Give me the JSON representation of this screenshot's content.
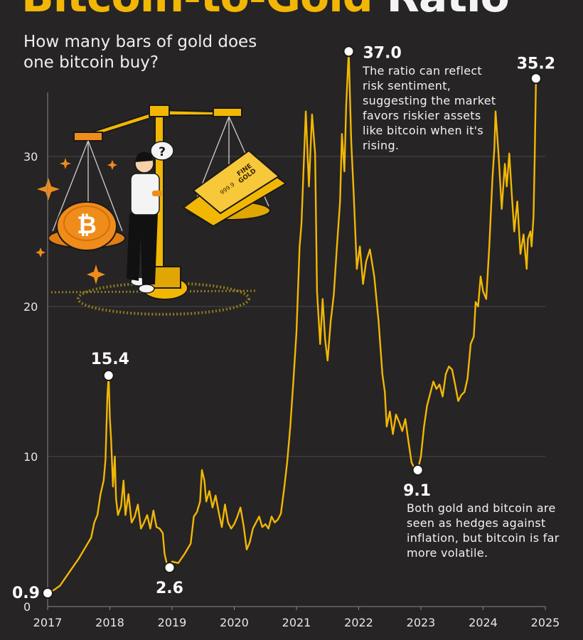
{
  "title": {
    "part1": "Bitcoin-to-Gold",
    "part2": " Ratio"
  },
  "subtitle": "How many bars of gold does one bitcoin buy?",
  "colors": {
    "line": "#f2b705",
    "background": "#262424",
    "grid": "#4a4747",
    "accent": "#f08c1a"
  },
  "annotations": {
    "peak_note": "The ratio can reflect risk sentiment, suggesting the market favors riskier assets like bitcoin when it's rising.",
    "low_note": "Both gold and bitcoin are seen as hedges against inflation, but bitcoin is far more volatile."
  },
  "illustration": {
    "bar_stamp_line1": "FINE",
    "bar_stamp_line2": "GOLD",
    "bar_purity": "999.9",
    "thinking_bubble": "?"
  },
  "chart_data": {
    "type": "line",
    "title": "Bitcoin-to-Gold Ratio",
    "subtitle": "How many bars of gold does one bitcoin buy?",
    "xlabel": "",
    "ylabel": "",
    "xlim": [
      2017,
      2025
    ],
    "ylim": [
      0,
      40
    ],
    "x_ticks": [
      2017,
      2018,
      2019,
      2020,
      2021,
      2022,
      2023,
      2024,
      2025
    ],
    "y_ticks": [
      0,
      10,
      20,
      30
    ],
    "grid": "horizontal",
    "series": [
      {
        "values": [
          [
            2017.0,
            0.9
          ],
          [
            2017.1,
            1.1
          ],
          [
            2017.2,
            1.4
          ],
          [
            2017.3,
            2.0
          ],
          [
            2017.4,
            2.6
          ],
          [
            2017.5,
            3.2
          ],
          [
            2017.6,
            3.9
          ],
          [
            2017.7,
            4.6
          ],
          [
            2017.75,
            5.6
          ],
          [
            2017.8,
            6.1
          ],
          [
            2017.85,
            7.5
          ],
          [
            2017.9,
            8.4
          ],
          [
            2017.93,
            9.8
          ],
          [
            2017.96,
            14.0
          ],
          [
            2017.98,
            15.4
          ],
          [
            2018.0,
            12.6
          ],
          [
            2018.02,
            11.2
          ],
          [
            2018.05,
            8.0
          ],
          [
            2018.08,
            10.0
          ],
          [
            2018.1,
            7.2
          ],
          [
            2018.13,
            6.1
          ],
          [
            2018.18,
            6.7
          ],
          [
            2018.22,
            8.4
          ],
          [
            2018.25,
            6.1
          ],
          [
            2018.3,
            7.5
          ],
          [
            2018.35,
            5.6
          ],
          [
            2018.4,
            6.0
          ],
          [
            2018.45,
            6.8
          ],
          [
            2018.5,
            5.2
          ],
          [
            2018.55,
            5.6
          ],
          [
            2018.6,
            6.1
          ],
          [
            2018.65,
            5.2
          ],
          [
            2018.7,
            6.4
          ],
          [
            2018.75,
            5.3
          ],
          [
            2018.8,
            5.2
          ],
          [
            2018.85,
            4.9
          ],
          [
            2018.88,
            3.5
          ],
          [
            2018.92,
            2.8
          ],
          [
            2018.96,
            2.6
          ],
          [
            2019.0,
            3.0
          ],
          [
            2019.1,
            2.9
          ],
          [
            2019.2,
            3.5
          ],
          [
            2019.3,
            4.2
          ],
          [
            2019.35,
            6.0
          ],
          [
            2019.4,
            6.3
          ],
          [
            2019.45,
            7.0
          ],
          [
            2019.48,
            9.1
          ],
          [
            2019.52,
            8.4
          ],
          [
            2019.55,
            7.0
          ],
          [
            2019.6,
            7.7
          ],
          [
            2019.65,
            6.6
          ],
          [
            2019.7,
            7.4
          ],
          [
            2019.75,
            6.3
          ],
          [
            2019.8,
            5.3
          ],
          [
            2019.85,
            6.8
          ],
          [
            2019.9,
            5.6
          ],
          [
            2019.95,
            5.2
          ],
          [
            2020.0,
            5.5
          ],
          [
            2020.05,
            6.0
          ],
          [
            2020.1,
            6.6
          ],
          [
            2020.15,
            5.4
          ],
          [
            2020.2,
            3.8
          ],
          [
            2020.25,
            4.3
          ],
          [
            2020.3,
            5.2
          ],
          [
            2020.35,
            5.6
          ],
          [
            2020.4,
            6.0
          ],
          [
            2020.45,
            5.3
          ],
          [
            2020.5,
            5.5
          ],
          [
            2020.55,
            5.2
          ],
          [
            2020.6,
            6.0
          ],
          [
            2020.65,
            5.6
          ],
          [
            2020.7,
            5.8
          ],
          [
            2020.75,
            6.2
          ],
          [
            2020.8,
            7.8
          ],
          [
            2020.85,
            9.6
          ],
          [
            2020.9,
            12.0
          ],
          [
            2020.95,
            15.0
          ],
          [
            2021.0,
            18.3
          ],
          [
            2021.05,
            24.0
          ],
          [
            2021.08,
            25.5
          ],
          [
            2021.12,
            29.8
          ],
          [
            2021.15,
            33.0
          ],
          [
            2021.2,
            28.0
          ],
          [
            2021.25,
            32.8
          ],
          [
            2021.3,
            30.2
          ],
          [
            2021.33,
            21.0
          ],
          [
            2021.38,
            17.5
          ],
          [
            2021.42,
            20.5
          ],
          [
            2021.46,
            17.8
          ],
          [
            2021.5,
            16.4
          ],
          [
            2021.55,
            19.0
          ],
          [
            2021.6,
            20.8
          ],
          [
            2021.65,
            24.0
          ],
          [
            2021.7,
            27.0
          ],
          [
            2021.73,
            31.5
          ],
          [
            2021.77,
            29.0
          ],
          [
            2021.8,
            33.5
          ],
          [
            2021.84,
            37.0
          ],
          [
            2021.88,
            31.0
          ],
          [
            2021.92,
            27.5
          ],
          [
            2021.97,
            22.5
          ],
          [
            2022.02,
            24.0
          ],
          [
            2022.07,
            21.5
          ],
          [
            2022.12,
            23.0
          ],
          [
            2022.18,
            23.8
          ],
          [
            2022.25,
            22.0
          ],
          [
            2022.32,
            19.0
          ],
          [
            2022.38,
            15.5
          ],
          [
            2022.42,
            14.3
          ],
          [
            2022.45,
            12.0
          ],
          [
            2022.5,
            13.0
          ],
          [
            2022.55,
            11.5
          ],
          [
            2022.6,
            12.8
          ],
          [
            2022.65,
            12.3
          ],
          [
            2022.7,
            11.7
          ],
          [
            2022.75,
            12.5
          ],
          [
            2022.8,
            11.0
          ],
          [
            2022.85,
            9.6
          ],
          [
            2022.9,
            9.2
          ],
          [
            2022.95,
            9.1
          ],
          [
            2023.0,
            10.0
          ],
          [
            2023.05,
            12.0
          ],
          [
            2023.1,
            13.4
          ],
          [
            2023.15,
            14.2
          ],
          [
            2023.2,
            15.0
          ],
          [
            2023.25,
            14.5
          ],
          [
            2023.3,
            14.8
          ],
          [
            2023.35,
            14.0
          ],
          [
            2023.4,
            15.5
          ],
          [
            2023.45,
            16.0
          ],
          [
            2023.5,
            15.8
          ],
          [
            2023.55,
            14.8
          ],
          [
            2023.6,
            13.7
          ],
          [
            2023.65,
            14.1
          ],
          [
            2023.7,
            14.3
          ],
          [
            2023.75,
            15.2
          ],
          [
            2023.8,
            17.5
          ],
          [
            2023.85,
            18.0
          ],
          [
            2023.88,
            20.3
          ],
          [
            2023.92,
            20.0
          ],
          [
            2023.96,
            22.0
          ],
          [
            2024.0,
            21.0
          ],
          [
            2024.05,
            20.5
          ],
          [
            2024.1,
            24.0
          ],
          [
            2024.15,
            28.5
          ],
          [
            2024.18,
            30.5
          ],
          [
            2024.2,
            33.0
          ],
          [
            2024.25,
            30.0
          ],
          [
            2024.3,
            26.5
          ],
          [
            2024.35,
            29.5
          ],
          [
            2024.38,
            28.0
          ],
          [
            2024.42,
            30.2
          ],
          [
            2024.46,
            27.5
          ],
          [
            2024.5,
            25.0
          ],
          [
            2024.55,
            27.0
          ],
          [
            2024.6,
            23.5
          ],
          [
            2024.65,
            24.8
          ],
          [
            2024.7,
            22.5
          ],
          [
            2024.72,
            24.5
          ],
          [
            2024.76,
            25.0
          ],
          [
            2024.78,
            24.0
          ],
          [
            2024.81,
            26.0
          ],
          [
            2024.83,
            30.0
          ],
          [
            2024.85,
            35.2
          ]
        ]
      }
    ],
    "annotations": [
      {
        "x": 2017.0,
        "y": 0.9,
        "label": "0.9"
      },
      {
        "x": 2017.98,
        "y": 15.4,
        "label": "15.4"
      },
      {
        "x": 2018.96,
        "y": 2.6,
        "label": "2.6"
      },
      {
        "x": 2021.84,
        "y": 37.0,
        "label": "37.0"
      },
      {
        "x": 2022.95,
        "y": 9.1,
        "label": "9.1"
      },
      {
        "x": 2024.85,
        "y": 35.2,
        "label": "35.2"
      }
    ]
  }
}
